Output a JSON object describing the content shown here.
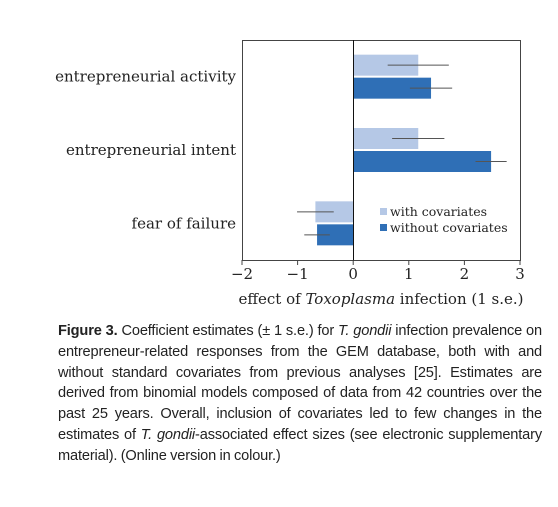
{
  "chart_data": {
    "type": "bar",
    "orientation": "horizontal",
    "categories": [
      "entrepreneurial activity",
      "entrepreneurial intent",
      "fear of failure"
    ],
    "series": [
      {
        "name": "with covariates",
        "color": "#b5c8e6",
        "values": [
          1.17,
          1.17,
          -0.68
        ],
        "errors": [
          0.55,
          0.47,
          0.33
        ]
      },
      {
        "name": "without covariates",
        "color": "#2f6fb6",
        "values": [
          1.4,
          2.48,
          -0.65
        ],
        "errors": [
          0.38,
          0.28,
          0.23
        ]
      }
    ],
    "x_ticks": [
      "−2",
      "−1",
      "0",
      "1",
      "2",
      "3"
    ],
    "x_tick_values": [
      -2,
      -1,
      0,
      1,
      2,
      3
    ],
    "xlim": [
      -2,
      3
    ],
    "xlabel_prefix": "effect of ",
    "xlabel_italic": "Toxoplasma",
    "xlabel_suffix": " infection (1 s.e.)",
    "legend_position": "lower-right",
    "grid": false
  },
  "caption": {
    "figure_label": "Figure 3.",
    "text_1": " Coefficient estimates (± 1 s.e.) for ",
    "italic_1": "T. gondii",
    "text_2": " infection prevalence on entrepreneur-related responses from the GEM database, both with and without standard covariates from previous analyses [25]. Estimates are derived from binomial models composed of data from 42 countries over the past 25 years. Overall, inclusion of covariates led to few changes in the estimates of ",
    "italic_2": "T. gondii",
    "text_3": "-associated effect sizes (see electronic supplementary material). (Online version in colour.)"
  }
}
